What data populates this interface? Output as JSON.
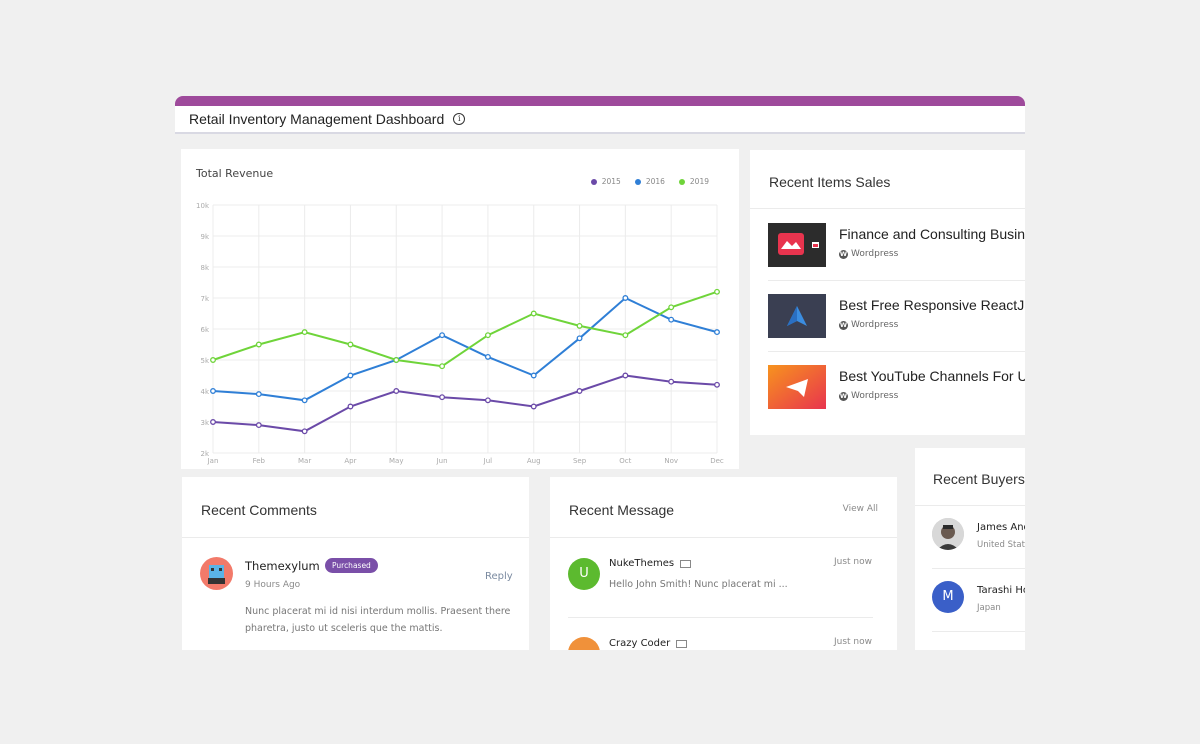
{
  "header": {
    "title": "Retail Inventory Management Dashboard",
    "info_icon": "info-icon"
  },
  "colors": {
    "accent": "#9e4a9b",
    "s2015": "#6b4aa8",
    "s2016": "#2f7fd6",
    "s2019": "#6fd43a",
    "badge": "#7a4fa8"
  },
  "chart_card": {
    "title": "Total Revenue"
  },
  "chart_data": {
    "type": "line",
    "title": "Total Revenue",
    "categories": [
      "Jan",
      "Feb",
      "Mar",
      "Apr",
      "May",
      "Jun",
      "Jul",
      "Aug",
      "Sep",
      "Oct",
      "Nov",
      "Dec"
    ],
    "ylim": [
      2,
      10
    ],
    "yticks": [
      "2k",
      "3k",
      "4k",
      "5k",
      "6k",
      "7k",
      "8k",
      "9k",
      "10k"
    ],
    "grid": true,
    "legend_position": "top-right",
    "series": [
      {
        "name": "2015",
        "color": "#6b4aa8",
        "values": [
          3.0,
          2.9,
          2.7,
          3.5,
          4.0,
          3.8,
          3.7,
          3.5,
          4.0,
          4.5,
          4.3,
          4.2
        ]
      },
      {
        "name": "2016",
        "color": "#2f7fd6",
        "values": [
          4.0,
          3.9,
          3.7,
          4.5,
          5.0,
          5.8,
          5.1,
          4.5,
          5.7,
          7.0,
          6.3,
          5.9
        ]
      },
      {
        "name": "2019",
        "color": "#6fd43a",
        "values": [
          5.0,
          5.5,
          5.9,
          5.5,
          5.0,
          4.8,
          5.8,
          6.5,
          6.1,
          5.8,
          6.7,
          7.2
        ]
      }
    ]
  },
  "recent_items": {
    "title": "Recent Items Sales",
    "items": [
      {
        "title": "Finance and Consulting Business",
        "platform": "Wordpress"
      },
      {
        "title": "Best Free Responsive ReactJS",
        "platform": "Wordpress"
      },
      {
        "title": "Best YouTube Channels For UI",
        "platform": "Wordpress"
      }
    ]
  },
  "comments": {
    "title": "Recent Comments",
    "author": "Themexylum",
    "badge": "Purchased",
    "time": "9 Hours Ago",
    "reply": "Reply",
    "text_line1": "Nunc placerat mi id nisi interdum mollis. Praesent there",
    "text_line2": "pharetra, justo ut sceleris que the mattis."
  },
  "messages": {
    "title": "Recent Message",
    "view_all": "View All",
    "items": [
      {
        "initial": "U",
        "name": "NukeThemes",
        "time": "Just now",
        "text": "Hello John Smith! Nunc placerat mi ...",
        "color": "#5cba2f"
      },
      {
        "initial": "",
        "name": "Crazy Coder",
        "time": "Just now",
        "text": "",
        "color": "#f0913a"
      }
    ]
  },
  "buyers": {
    "title": "Recent Buyers",
    "items": [
      {
        "name": "James Anderson",
        "location": "United States"
      },
      {
        "initial": "M",
        "name": "Tarashi Hoshino",
        "location": "Japan"
      }
    ]
  }
}
